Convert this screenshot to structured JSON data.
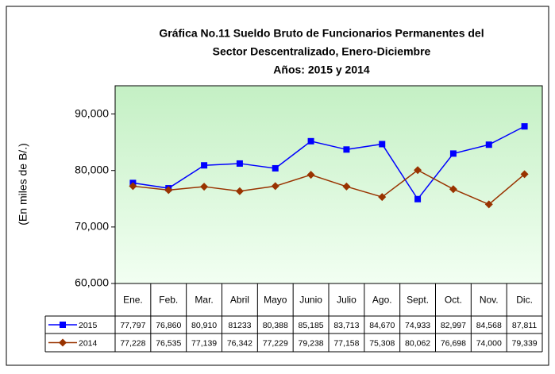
{
  "chart_data": {
    "type": "line",
    "title": [
      "Gráfica No.11 Sueldo Bruto de Funcionarios Permanentes del",
      "Sector Descentralizado, Enero-Diciembre",
      "Años: 2015 y 2014"
    ],
    "y_label": "(En miles de B/.)",
    "categories": [
      "Ene.",
      "Feb.",
      "Mar.",
      "Abril",
      "Mayo",
      "Junio",
      "Julio",
      "Ago.",
      "Sept.",
      "Oct.",
      "Nov.",
      "Dic."
    ],
    "series": [
      {
        "name": "2015",
        "color": "#0000ff",
        "marker": "square",
        "values": [
          77797,
          76860,
          80910,
          81233,
          80388,
          85185,
          83713,
          84670,
          74933,
          82997,
          84568,
          87811
        ],
        "value_labels": [
          "77,797",
          "76,860",
          "80,910",
          "81233",
          "80,388",
          "85,185",
          "83,713",
          "84,670",
          "74,933",
          "82,997",
          "84,568",
          "87,811"
        ]
      },
      {
        "name": "2014",
        "color": "#993300",
        "marker": "diamond",
        "values": [
          77228,
          76535,
          77139,
          76342,
          77229,
          79238,
          77158,
          75308,
          80062,
          76698,
          74000,
          79339
        ],
        "value_labels": [
          "77,228",
          "76,535",
          "77,139",
          "76,342",
          "77,229",
          "79,238",
          "77,158",
          "75,308",
          "80,062",
          "76,698",
          "74,000",
          "79,339"
        ]
      }
    ],
    "ylim": [
      60000,
      95000
    ],
    "yticks": [
      {
        "value": 60000,
        "label": "60,000"
      },
      {
        "value": 70000,
        "label": "70,000"
      },
      {
        "value": 80000,
        "label": "80,000"
      },
      {
        "value": 90000,
        "label": "90,000"
      }
    ],
    "grid": false
  }
}
